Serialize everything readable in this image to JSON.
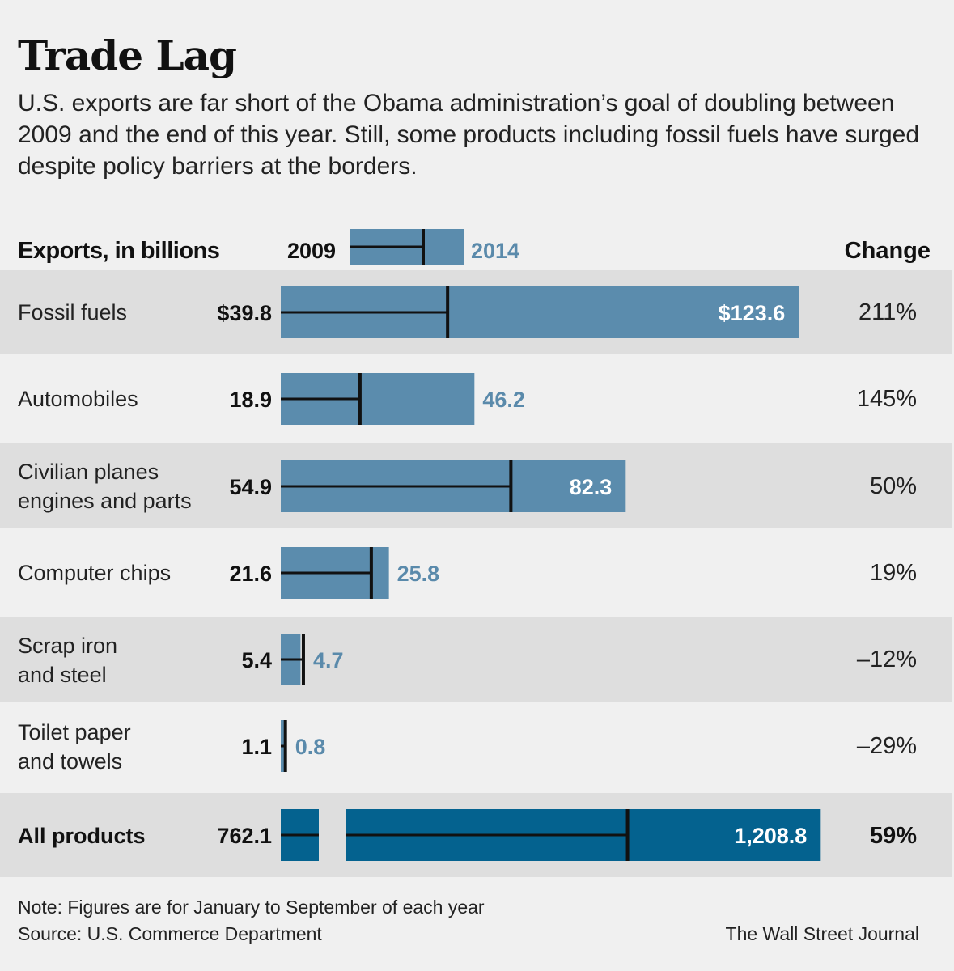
{
  "chart_data": {
    "type": "bar",
    "title": "Trade Lag",
    "subtitle": "U.S. exports are far short of the Obama administration’s goal of doubling between 2009 and the end of this year. Still, some products including fossil fuels have surged despite policy barriers at the borders.",
    "column_header": "Exports, in billions",
    "change_header": "Change",
    "legend": {
      "series_2009": "2009",
      "series_2014": "2014"
    },
    "rows": [
      {
        "label": "Fossil fuels",
        "v2009": 39.8,
        "v2014": 123.6,
        "label_2009": "$39.8",
        "label_2014": "$123.6",
        "change": "211%"
      },
      {
        "label": "Automobiles",
        "v2009": 18.9,
        "v2014": 46.2,
        "label_2009": "18.9",
        "label_2014": "46.2",
        "change": "145%"
      },
      {
        "label": "Civilian planes engines and parts",
        "label_lines": [
          "Civilian planes",
          "engines and parts"
        ],
        "v2009": 54.9,
        "v2014": 82.3,
        "label_2009": "54.9",
        "label_2014": "82.3",
        "change": "50%"
      },
      {
        "label": "Computer chips",
        "v2009": 21.6,
        "v2014": 25.8,
        "label_2009": "21.6",
        "label_2014": "25.8",
        "change": "19%"
      },
      {
        "label": "Scrap iron and steel",
        "label_lines": [
          "Scrap iron",
          "and steel"
        ],
        "v2009": 5.4,
        "v2014": 4.7,
        "label_2009": "5.4",
        "label_2014": "4.7",
        "change": "–12%"
      },
      {
        "label": "Toilet paper and towels",
        "label_lines": [
          "Toilet paper",
          "and towels"
        ],
        "v2009": 1.1,
        "v2014": 0.8,
        "label_2009": "1.1",
        "label_2014": "0.8",
        "change": "–29%"
      }
    ],
    "total": {
      "label": "All products",
      "v2009": 762.1,
      "v2014": 1208.8,
      "label_2009": "762.1",
      "label_2014": "1,208.8",
      "change": "59%",
      "axis_break": true
    },
    "note": "Note: Figures are for January to September of each year",
    "source": "Source: U.S. Commerce Department",
    "credit": "The Wall Street Journal",
    "colors": {
      "bar": "#5b8cad",
      "total_bar": "#04628f",
      "marker": "#111111",
      "label_2014": "#5a8aab",
      "shade": "#dedede"
    }
  }
}
